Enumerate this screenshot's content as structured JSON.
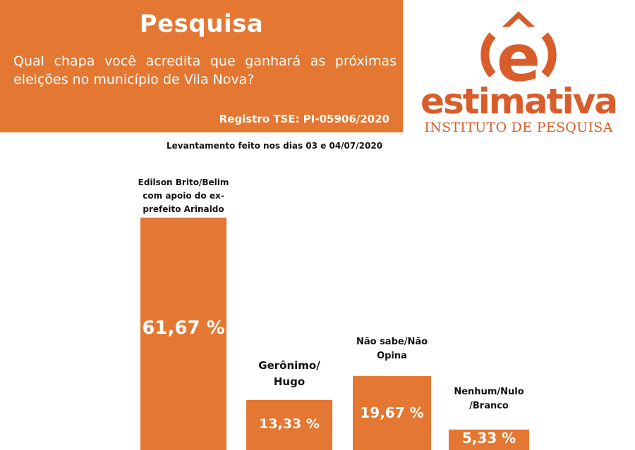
{
  "header": {
    "title": "Pesquisa",
    "question": "Qual chapa você acredita que ganhará as próximas eleições no município de Vila Nova?",
    "registro": "Registro TSE: PI-05906/2020"
  },
  "levantamento": "Levantamento feito nos dias 03 e 04/07/2020",
  "logo": {
    "word": "estimativa",
    "subtitle": "INSTITUTO DE PESQUISA",
    "letter": "ê"
  },
  "colors": {
    "accent": "#e47832",
    "logo": "#d95d2a",
    "text": "#111111",
    "background": "#ffffff"
  },
  "chart_data": {
    "type": "bar",
    "categories": [
      "Edilson Brito/Belim com apoio do ex-prefeito Arinaldo",
      "Gerônimo/ Hugo",
      "Não sabe/Não Opina",
      "Nenhum/Nulo /Branco"
    ],
    "values": [
      61.67,
      13.33,
      19.67,
      5.33
    ],
    "value_labels": [
      "61,67 %",
      "13,33 %",
      "19,67 %",
      "5,33 %"
    ],
    "unit": "%",
    "grid": false,
    "legend": "none"
  }
}
